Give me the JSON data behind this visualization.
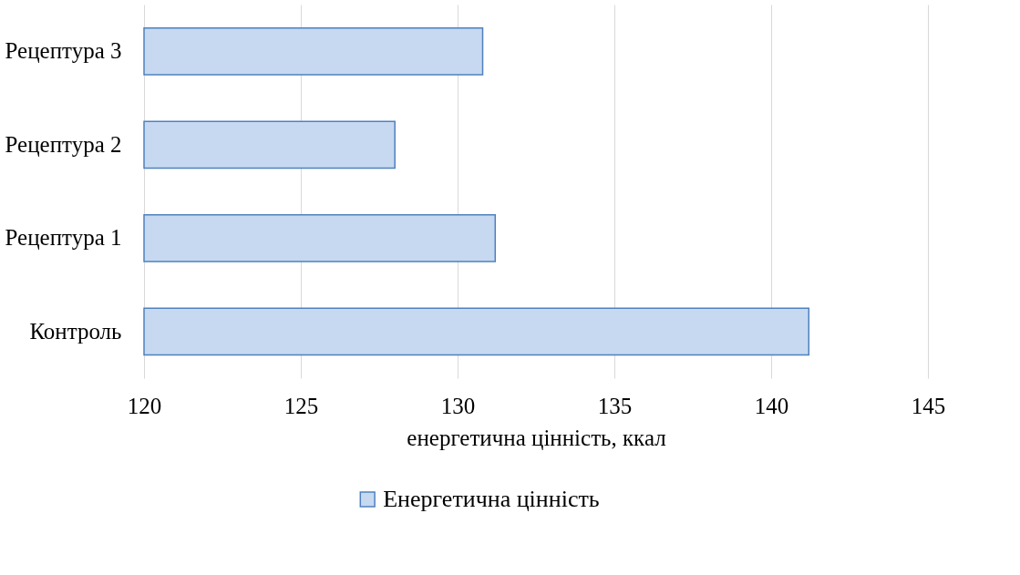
{
  "chart_data": {
    "type": "bar",
    "orientation": "horizontal",
    "xlabel": "енергетична цінність, ккал",
    "categories": [
      "Рецептура 3",
      "Рецептура 2",
      "Рецептура 1",
      "Контроль"
    ],
    "series": [
      {
        "name": "Енергетична цінність",
        "color": "#c6d9f1",
        "values": [
          130.8,
          128.0,
          131.2,
          141.2
        ]
      }
    ],
    "xlim": [
      120,
      145
    ],
    "xticks": [
      120,
      125,
      130,
      135,
      140,
      145
    ],
    "grid": "x",
    "legend": "bottom"
  }
}
